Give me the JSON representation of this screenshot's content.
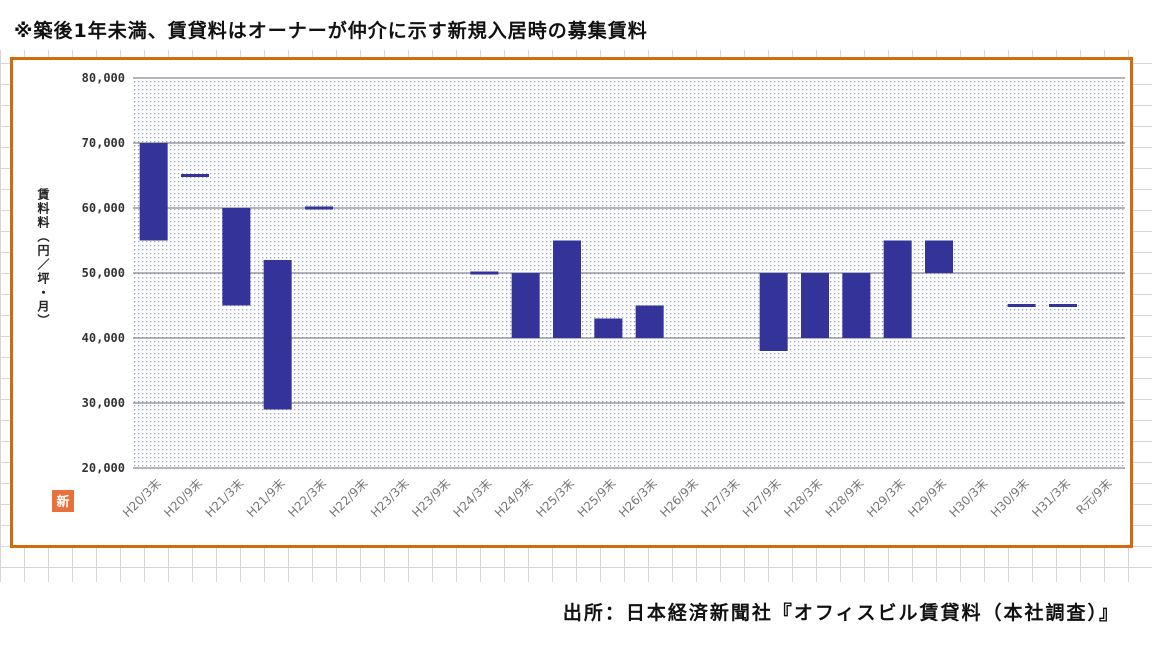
{
  "note": "※築後1年未満、賃貸料はオーナーが仲介に示す新規入居時の募集賃料",
  "source": "出所：日本経済新聞社『オフィスビル賃貸料（本社調査）』",
  "colors": {
    "bar": "#333399",
    "frame": "#d46a0b",
    "badge": "#e8703a"
  },
  "chart_data": {
    "type": "bar",
    "subtype": "floating-range",
    "ylabel": "賃料料（円／坪・月）",
    "ylim": [
      20000,
      80000
    ],
    "yticks": [
      "20,000",
      "30,000",
      "40,000",
      "50,000",
      "60,000",
      "70,000",
      "80,000"
    ],
    "grid": true,
    "badge": "新",
    "categories": [
      "H20/3末",
      "H20/9末",
      "H21/3末",
      "H21/9末",
      "H22/3末",
      "H22/9末",
      "H23/3末",
      "H23/9末",
      "H24/3末",
      "H24/9末",
      "H25/3末",
      "H25/9末",
      "H26/3末",
      "H26/9末",
      "H27/3末",
      "H27/9末",
      "H28/3末",
      "H28/9末",
      "H29/3末",
      "H29/9末",
      "H30/3末",
      "H30/9末",
      "H31/3末",
      "R元/9末"
    ],
    "ranges": [
      [
        55000,
        70000
      ],
      [
        65000,
        65000
      ],
      [
        45000,
        60000
      ],
      [
        29000,
        52000
      ],
      [
        60000,
        60000
      ],
      null,
      null,
      null,
      [
        50000,
        50000
      ],
      [
        40000,
        50000
      ],
      [
        40000,
        55000
      ],
      [
        40000,
        43000
      ],
      [
        40000,
        45000
      ],
      null,
      null,
      [
        38000,
        50000
      ],
      [
        40000,
        50000
      ],
      [
        40000,
        50000
      ],
      [
        40000,
        55000
      ],
      [
        50000,
        55000
      ],
      null,
      [
        45000,
        45000
      ],
      [
        45000,
        45000
      ],
      null
    ]
  }
}
